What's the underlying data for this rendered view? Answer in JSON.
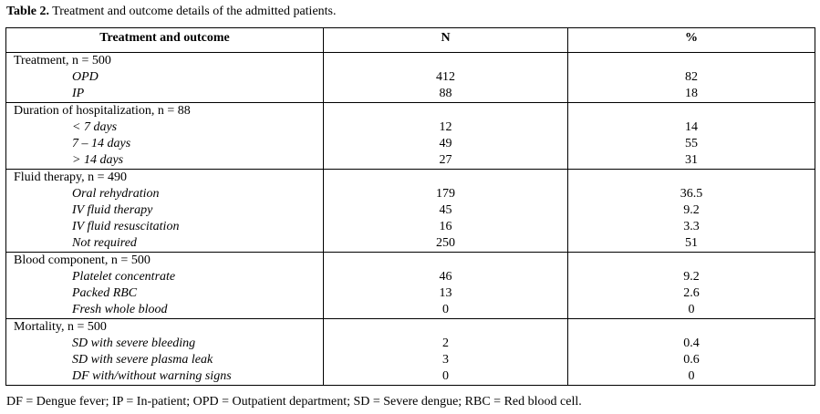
{
  "caption": {
    "label": "Table 2.",
    "text": " Treatment and outcome details of the admitted patients."
  },
  "headers": [
    "Treatment and outcome",
    "N",
    "%"
  ],
  "sections": [
    {
      "title": "Treatment, n = 500",
      "rows": [
        {
          "label": "OPD",
          "n": "412",
          "pct": "82"
        },
        {
          "label": "IP",
          "n": "88",
          "pct": "18"
        }
      ]
    },
    {
      "title": "Duration of hospitalization, n = 88",
      "rows": [
        {
          "label": "< 7 days",
          "n": "12",
          "pct": "14"
        },
        {
          "label": "7 – 14 days",
          "n": "49",
          "pct": "55"
        },
        {
          "label": "> 14 days",
          "n": "27",
          "pct": "31"
        }
      ]
    },
    {
      "title": "Fluid therapy, n = 490",
      "rows": [
        {
          "label": "Oral rehydration",
          "n": "179",
          "pct": "36.5"
        },
        {
          "label": "IV fluid therapy",
          "n": "45",
          "pct": "9.2"
        },
        {
          "label": "IV fluid resuscitation",
          "n": "16",
          "pct": "3.3"
        },
        {
          "label": "Not required",
          "n": "250",
          "pct": "51"
        }
      ]
    },
    {
      "title": "Blood component, n = 500",
      "rows": [
        {
          "label": "Platelet concentrate",
          "n": "46",
          "pct": "9.2"
        },
        {
          "label": "Packed RBC",
          "n": "13",
          "pct": "2.6"
        },
        {
          "label": "Fresh whole blood",
          "n": "0",
          "pct": "0"
        }
      ]
    },
    {
      "title": "Mortality, n = 500",
      "rows": [
        {
          "label": "SD with severe bleeding",
          "n": "2",
          "pct": "0.4"
        },
        {
          "label": "SD with severe plasma leak",
          "n": "3",
          "pct": "0.6"
        },
        {
          "label": "DF with/without warning signs",
          "n": "0",
          "pct": "0"
        }
      ]
    }
  ],
  "footnote": "DF = Dengue fever; IP = In-patient; OPD = Outpatient department; SD = Severe dengue; RBC = Red blood cell."
}
